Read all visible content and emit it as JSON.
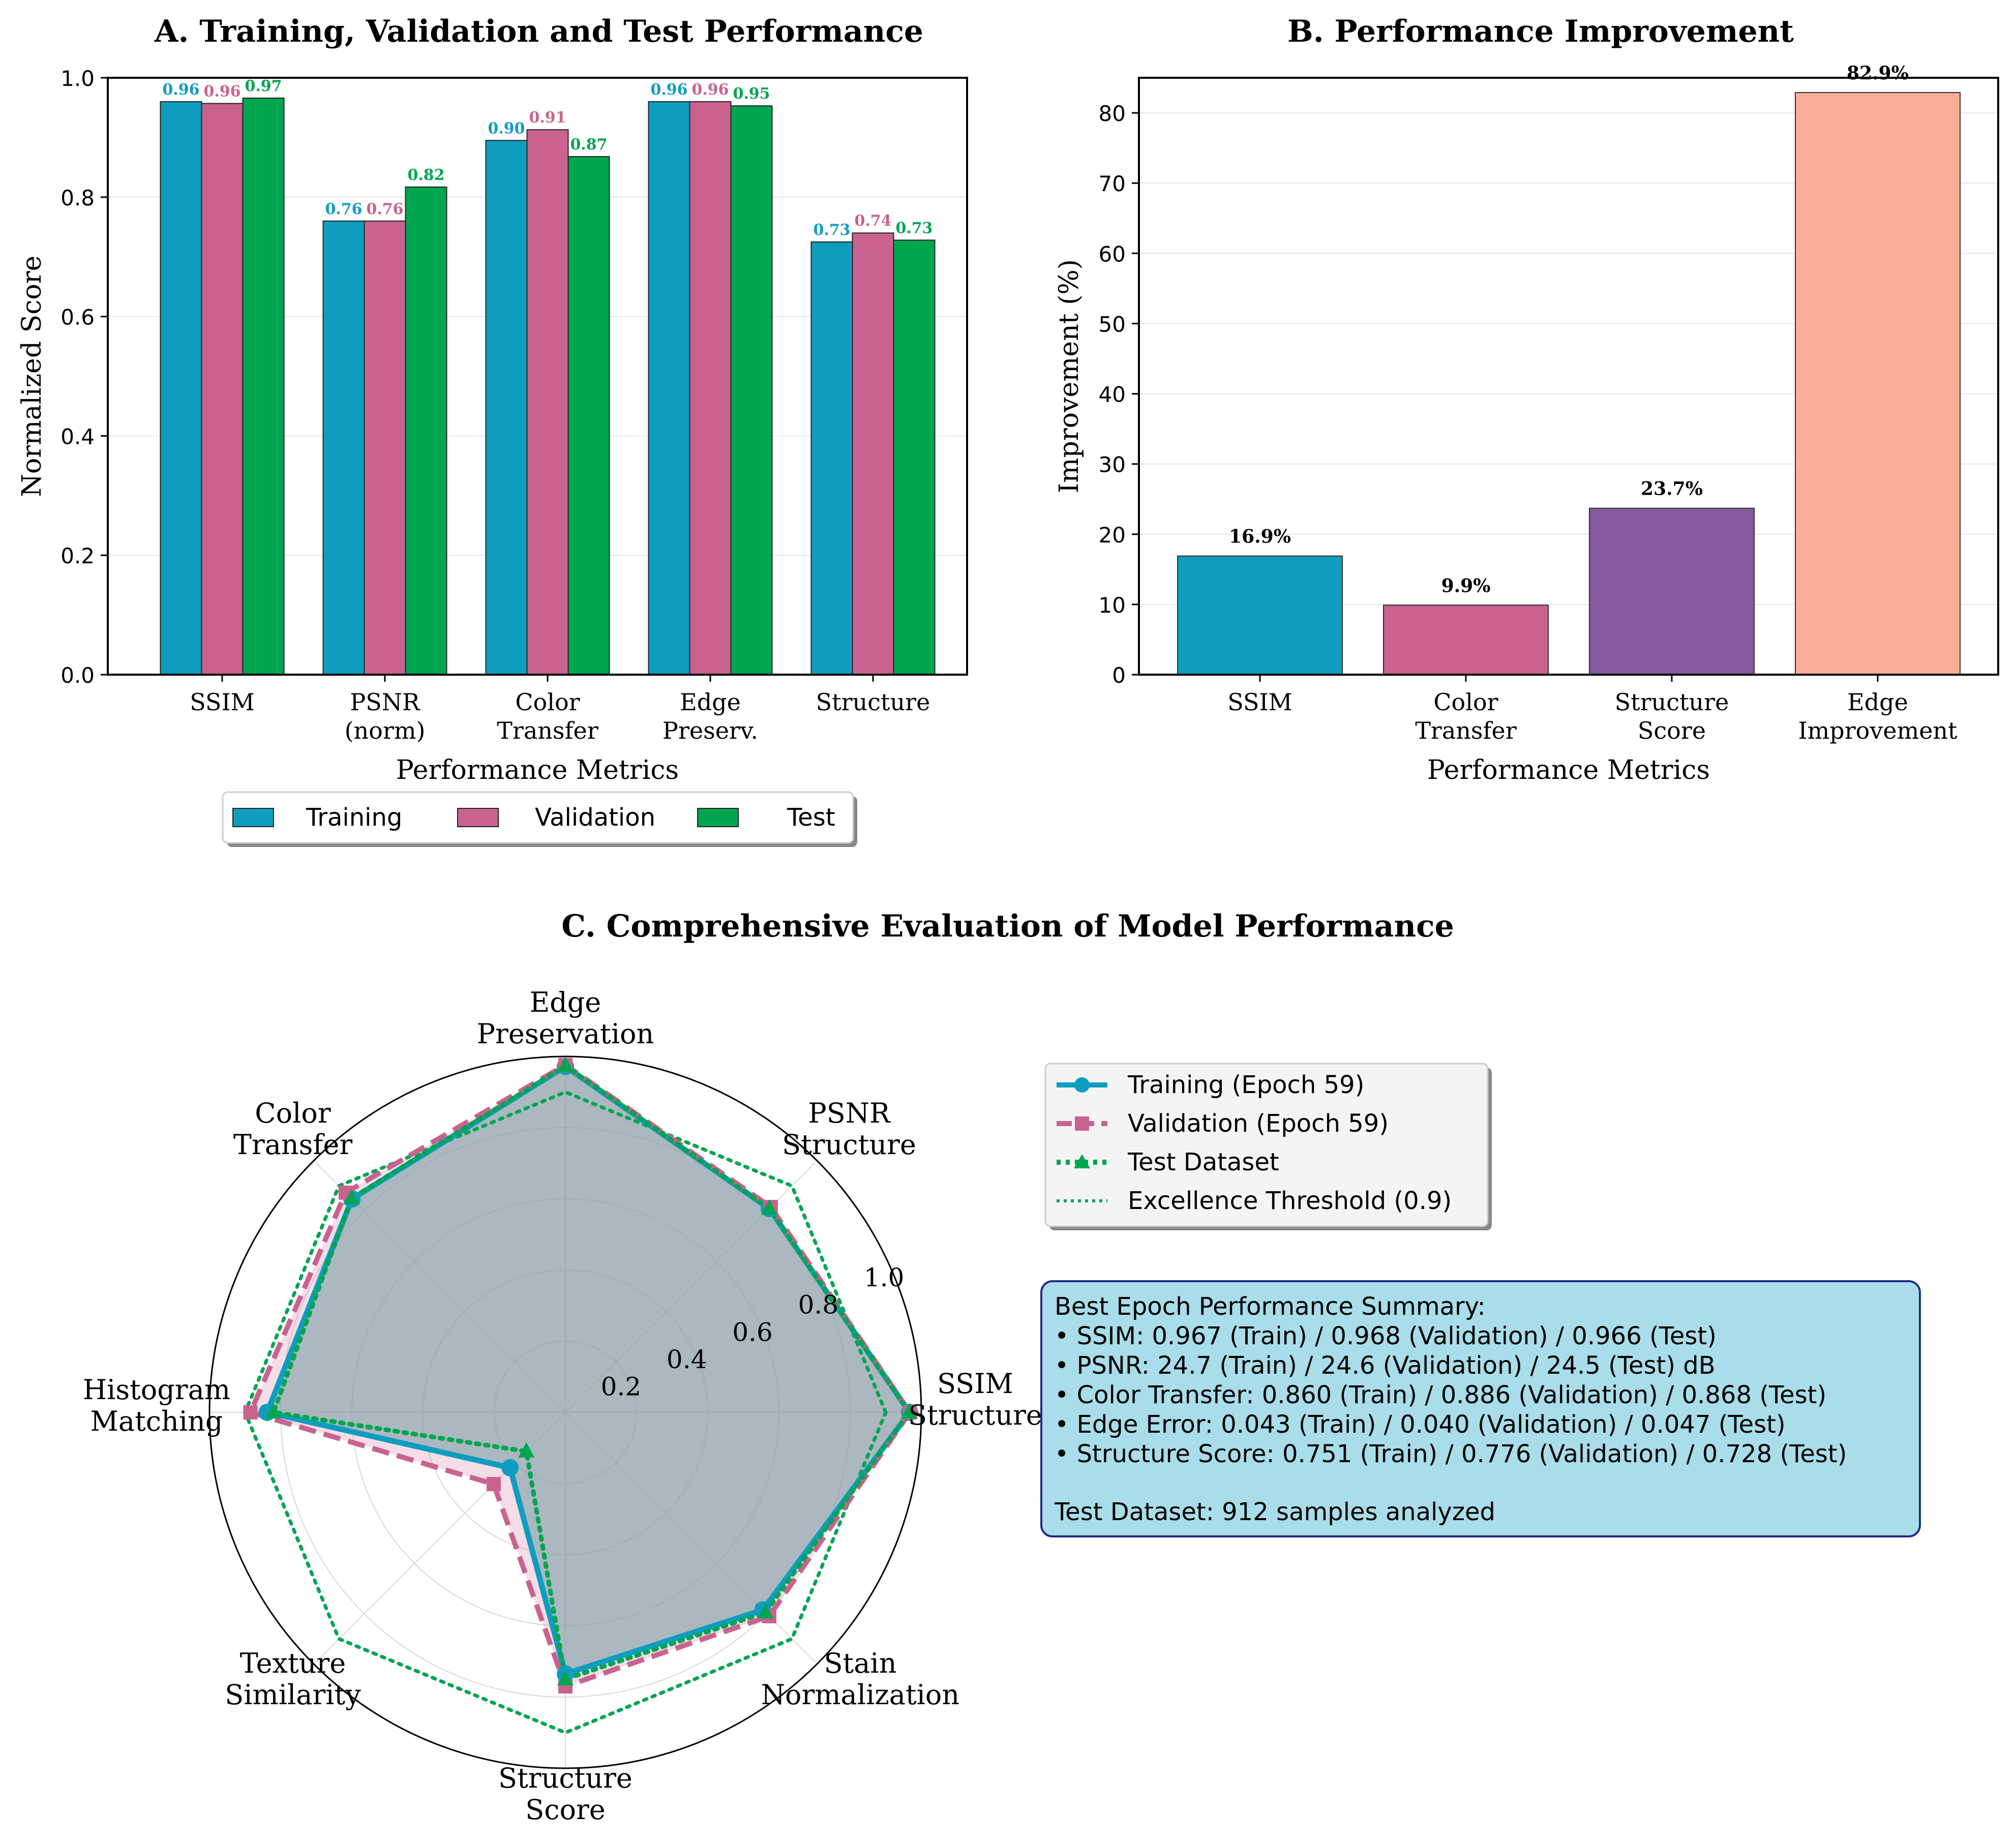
{
  "colors": {
    "training": "#0f9dbf",
    "validation": "#c9628f",
    "test": "#00a550",
    "improvement": [
      "#0f9dbf",
      "#c9628f",
      "#8559a0",
      "#fbad98"
    ],
    "summary_bg": "#a8dde9",
    "summary_border": "#1f2a8a",
    "radar_fill": "#8fa9b0"
  },
  "chart_data": [
    {
      "id": "A",
      "type": "bar",
      "title": "A. Training, Validation and Test Performance",
      "xlabel": "Performance Metrics",
      "ylabel": "Normalized Score",
      "ylim": [
        0,
        1.0
      ],
      "yticks": [
        "0.0",
        "0.2",
        "0.4",
        "0.6",
        "0.8",
        "1.0"
      ],
      "categories": [
        [
          "SSIM"
        ],
        [
          "PSNR",
          "(norm)"
        ],
        [
          "Color",
          "Transfer"
        ],
        [
          "Edge",
          "Preserv."
        ],
        [
          "Structure"
        ]
      ],
      "series": [
        {
          "name": "Training",
          "values": [
            0.96,
            0.76,
            0.895,
            0.96,
            0.725
          ],
          "labels": [
            "0.96",
            "0.76",
            "0.90",
            "0.96",
            "0.73"
          ]
        },
        {
          "name": "Validation",
          "values": [
            0.957,
            0.76,
            0.913,
            0.96,
            0.74
          ],
          "labels": [
            "0.96",
            "0.76",
            "0.91",
            "0.96",
            "0.74"
          ]
        },
        {
          "name": "Test",
          "values": [
            0.966,
            0.817,
            0.868,
            0.953,
            0.728
          ],
          "labels": [
            "0.97",
            "0.82",
            "0.87",
            "0.95",
            "0.73"
          ]
        }
      ],
      "legend": "bottom-center",
      "grid": true
    },
    {
      "id": "B",
      "type": "bar",
      "title": "B. Performance Improvement",
      "xlabel": "Performance Metrics",
      "ylabel": "Improvement (%)",
      "ylim": [
        0,
        85.0
      ],
      "yticks": [
        "0",
        "10",
        "20",
        "30",
        "40",
        "50",
        "60",
        "70",
        "80"
      ],
      "categories": [
        [
          "SSIM"
        ],
        [
          "Color",
          "Transfer"
        ],
        [
          "Structure",
          "Score"
        ],
        [
          "Edge",
          "Improvement"
        ]
      ],
      "values": [
        16.9,
        9.9,
        23.7,
        82.9
      ],
      "labels": [
        "16.9%",
        "9.9%",
        "23.7%",
        "82.9%"
      ],
      "grid": true
    },
    {
      "id": "C",
      "type": "radar",
      "title": "C. Comprehensive Evaluation of Model Performance",
      "axes": [
        [
          "SSIM",
          "Structure"
        ],
        [
          "PSNR",
          "Structure"
        ],
        [
          "Edge",
          "Preservation"
        ],
        [
          "Color",
          "Transfer"
        ],
        [
          "Histogram",
          "Matching"
        ],
        [
          "Texture",
          "Similarity"
        ],
        [
          "Structure",
          "Score"
        ],
        [
          "Stain",
          "Normalization"
        ]
      ],
      "rticks": [
        "0.2",
        "0.4",
        "0.6",
        "0.8",
        "1.0"
      ],
      "rlim": [
        0,
        1.0
      ],
      "series": [
        {
          "name": "Training (Epoch 59)",
          "values": [
            0.967,
            0.81,
            0.972,
            0.848,
            0.838,
            0.22,
            0.735,
            0.785
          ]
        },
        {
          "name": "Validation (Epoch 59)",
          "values": [
            0.968,
            0.816,
            0.976,
            0.873,
            0.885,
            0.285,
            0.77,
            0.81
          ]
        },
        {
          "name": "Test Dataset",
          "values": [
            0.966,
            0.81,
            0.974,
            0.85,
            0.82,
            0.155,
            0.75,
            0.795
          ]
        },
        {
          "name": "Excellence Threshold (0.9)",
          "values": [
            0.9,
            0.9,
            0.9,
            0.9,
            0.9,
            0.9,
            0.9,
            0.9
          ]
        }
      ],
      "legend": "upper-right"
    }
  ],
  "summary_lines": [
    "Best Epoch Performance Summary:",
    "• SSIM: 0.967 (Train) / 0.968 (Validation) / 0.966 (Test)",
    "• PSNR: 24.7 (Train) / 24.6 (Validation) / 24.5 (Test) dB",
    "• Color Transfer: 0.860 (Train) / 0.886 (Validation) / 0.868 (Test)",
    "• Edge Error: 0.043 (Train) / 0.040 (Validation) / 0.047 (Test)",
    "• Structure Score: 0.751 (Train) / 0.776 (Validation) / 0.728 (Test)",
    "",
    "Test Dataset: 912 samples analyzed"
  ]
}
